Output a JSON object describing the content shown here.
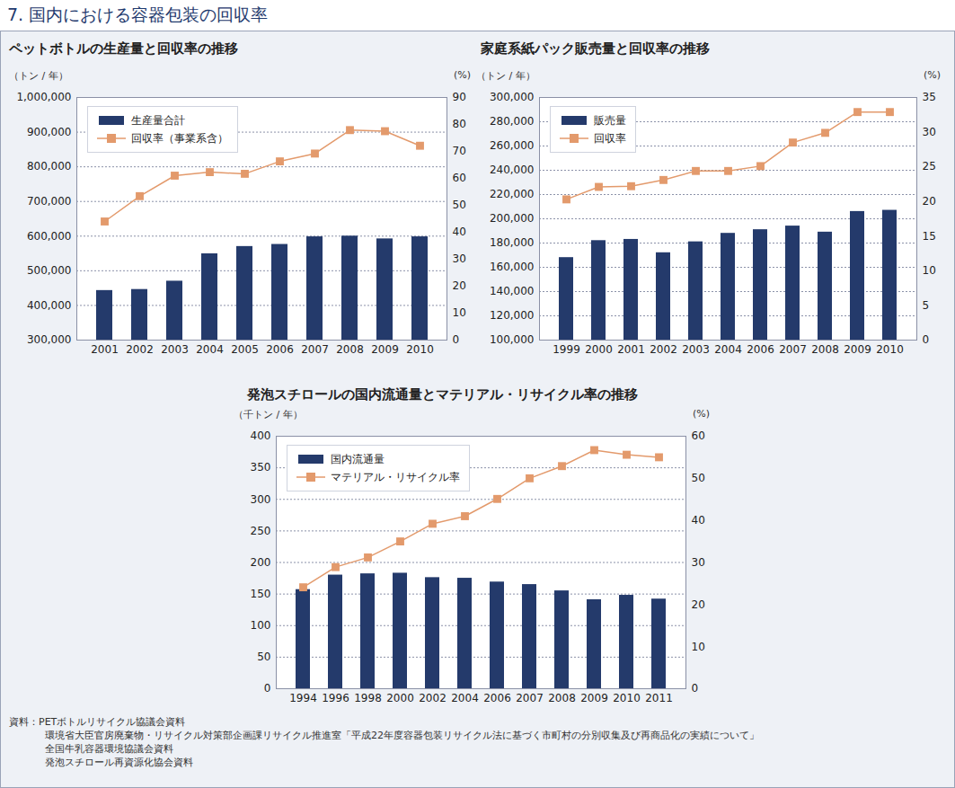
{
  "page_title": "7.  国内における容器包装の回収率",
  "chart_data": [
    {
      "type": "bar",
      "title": "ペットボトルの生産量と回収率の推移",
      "ylabel": "（トン / 年）",
      "y2label": "(%)",
      "categories": [
        "2001",
        "2002",
        "2003",
        "2004",
        "2005",
        "2006",
        "2007",
        "2008",
        "2009",
        "2010"
      ],
      "series": [
        {
          "name": "生産量合計",
          "type": "bar",
          "color": "#243a6b",
          "values": [
            443000,
            446000,
            470000,
            549000,
            570000,
            576000,
            598000,
            600000,
            592000,
            598000
          ]
        },
        {
          "name": "回収率（事業系含）",
          "type": "line",
          "axis": "y2",
          "color": "#e39a6c",
          "marker": "square",
          "values": [
            44.0,
            53.4,
            61.0,
            62.3,
            61.7,
            66.3,
            69.2,
            77.9,
            77.5,
            72.1
          ]
        }
      ],
      "ylim": [
        300000,
        1000000
      ],
      "yticks": [
        {
          "value": 300000,
          "label": "300,000"
        },
        {
          "value": 400000,
          "label": "400,000"
        },
        {
          "value": 500000,
          "label": "500,000"
        },
        {
          "value": 600000,
          "label": "600,000"
        },
        {
          "value": 700000,
          "label": "700,000"
        },
        {
          "value": 800000,
          "label": "800,000"
        },
        {
          "value": 900000,
          "label": "900,000"
        },
        {
          "value": 1000000,
          "label": "1,000,000"
        }
      ],
      "y2lim": [
        0,
        90
      ],
      "y2ticks": [
        0,
        10,
        20,
        30,
        40,
        50,
        60,
        70,
        80,
        90
      ],
      "grid": true,
      "legend": "upper left"
    },
    {
      "type": "bar",
      "title": "家庭系紙パック販売量と回収率の推移",
      "ylabel": "（トン / 年）",
      "y2label": "(%)",
      "categories": [
        "1999",
        "2000",
        "2001",
        "2002",
        "2003",
        "2004",
        "2006",
        "2007",
        "2008",
        "2009",
        "2010"
      ],
      "series": [
        {
          "name": "販売量",
          "type": "bar",
          "color": "#243a6b",
          "values": [
            168000,
            182000,
            183000,
            172000,
            181000,
            188000,
            191000,
            194000,
            189000,
            206000,
            207000
          ]
        },
        {
          "name": "回収率",
          "type": "line",
          "axis": "y2",
          "color": "#e39a6c",
          "marker": "square",
          "values": [
            20.3,
            22.1,
            22.2,
            23.1,
            24.4,
            24.4,
            25.1,
            28.5,
            29.9,
            32.9,
            32.9
          ]
        }
      ],
      "ylim": [
        100000,
        300000
      ],
      "yticks": [
        {
          "value": 100000,
          "label": "100,000"
        },
        {
          "value": 120000,
          "label": "120,000"
        },
        {
          "value": 140000,
          "label": "140,000"
        },
        {
          "value": 160000,
          "label": "160,000"
        },
        {
          "value": 180000,
          "label": "180,000"
        },
        {
          "value": 200000,
          "label": "200,000"
        },
        {
          "value": 220000,
          "label": "220,000"
        },
        {
          "value": 240000,
          "label": "240,000"
        },
        {
          "value": 260000,
          "label": "260,000"
        },
        {
          "value": 280000,
          "label": "280,000"
        },
        {
          "value": 300000,
          "label": "300,000"
        }
      ],
      "y2lim": [
        0,
        35
      ],
      "y2ticks": [
        0,
        5,
        10,
        15,
        20,
        25,
        30,
        35
      ],
      "grid": true,
      "legend": "upper left"
    },
    {
      "type": "bar",
      "title": "発泡スチロールの国内流通量とマテリアル・リサイクル率の推移",
      "ylabel": "（千トン / 年）",
      "y2label": "(%)",
      "categories": [
        "1994",
        "1996",
        "1998",
        "2000",
        "2002",
        "2004",
        "2006",
        "2007",
        "2008",
        "2009",
        "2010",
        "2011"
      ],
      "series": [
        {
          "name": "国内流通量",
          "type": "bar",
          "color": "#243a6b",
          "values": [
            157,
            180,
            182,
            183,
            176,
            175,
            169,
            165,
            155,
            141,
            148,
            142
          ]
        },
        {
          "name": "マテリアル・リサイクル率",
          "type": "line",
          "axis": "y2",
          "color": "#e39a6c",
          "marker": "square",
          "values": [
            24.1,
            28.9,
            31.2,
            35.0,
            39.2,
            41.0,
            45.1,
            50.0,
            52.9,
            56.7,
            55.6,
            55.0
          ]
        }
      ],
      "ylim": [
        0,
        400
      ],
      "yticks": [
        0,
        50,
        100,
        150,
        200,
        250,
        300,
        350,
        400
      ],
      "y2lim": [
        0,
        60
      ],
      "y2ticks": [
        0,
        10,
        20,
        30,
        40,
        50,
        60
      ],
      "grid": true,
      "legend": "upper left"
    }
  ],
  "source_label": "資料：",
  "sources": [
    "PETボトルリサイクル協議会資料",
    "環境省大臣官房廃棄物・リサイクル対策部企画課リサイクル推進室「平成22年度容器包装リサイクル法に基づく市町村の分別収集及び再商品化の実績について」",
    "全国牛乳容器環境協議会資料",
    "発泡スチロール再資源化協会資料"
  ]
}
